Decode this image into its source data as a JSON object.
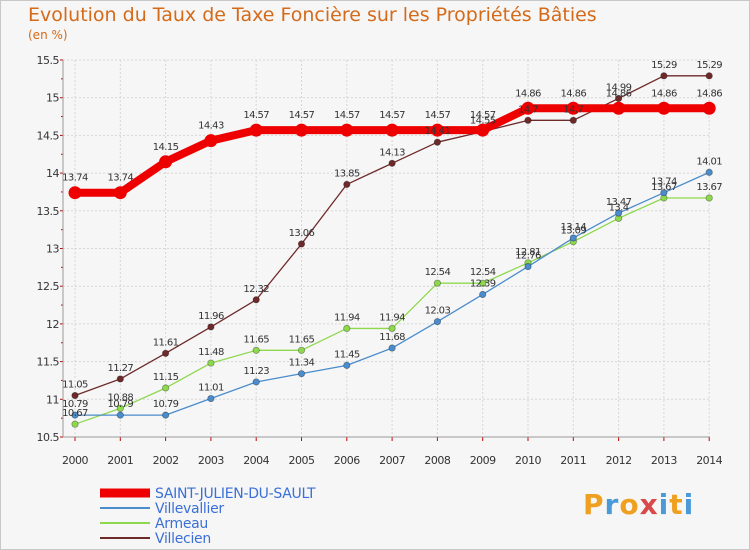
{
  "header": {
    "title": "Evolution du Taux de Taxe Foncière sur les Propriétés Bâties",
    "units": "(en %)"
  },
  "logo": {
    "letters": [
      "P",
      "r",
      "o",
      "x",
      "i",
      "t",
      "i"
    ],
    "colors": [
      "#f0a020",
      "#4a9ad8",
      "#f0a020",
      "#d84a4a",
      "#4a9ad8",
      "#f0a020",
      "#4a9ad8"
    ]
  },
  "chart_data": {
    "type": "line",
    "title": "Evolution du Taux de Taxe Foncière sur les Propriétés Bâties",
    "ylabel": "(en %)",
    "xlabel": "",
    "ylim": [
      10.5,
      15.5
    ],
    "yticks": [
      "10.5",
      "11",
      "11.5",
      "12",
      "12.5",
      "13",
      "13.5",
      "14",
      "14.5",
      "15",
      "15.5"
    ],
    "x": [
      "2000",
      "2001",
      "2002",
      "2003",
      "2004",
      "2005",
      "2006",
      "2007",
      "2008",
      "2009",
      "2010",
      "2011",
      "2012",
      "2013",
      "2014"
    ],
    "legend_position": "bottom-left",
    "series": [
      {
        "name": "SAINT-JULIEN-DU-SAULT",
        "color": "#ee0000",
        "values": [
          13.74,
          13.74,
          14.15,
          14.43,
          14.57,
          14.57,
          14.57,
          14.57,
          14.57,
          14.57,
          14.86,
          14.86,
          14.86,
          14.86,
          14.86
        ],
        "labels": [
          "13.74",
          "13.74",
          "14.15",
          "14.43",
          "14.57",
          "14.57",
          "14.57",
          "14.57",
          "14.57",
          "14.57",
          "14.86",
          "14.86",
          "14.86",
          "14.86",
          "14.86"
        ]
      },
      {
        "name": "Villevallier",
        "color": "#4a8ccc",
        "values": [
          10.79,
          10.79,
          10.79,
          11.01,
          11.23,
          11.34,
          11.45,
          11.68,
          12.03,
          12.39,
          12.76,
          13.14,
          13.47,
          13.74,
          14.01
        ],
        "labels": [
          "10.79",
          "10.79",
          "10.79",
          "11.01",
          "11.23",
          "11.34",
          "11.45",
          "11.68",
          "12.03",
          "12.39",
          "12.76",
          "13.14",
          "13.47",
          "13.74",
          "14.01"
        ]
      },
      {
        "name": "Armeau",
        "color": "#8ed84e",
        "values": [
          10.67,
          10.88,
          11.15,
          11.48,
          11.65,
          11.65,
          11.94,
          11.94,
          12.54,
          12.54,
          12.81,
          13.09,
          13.4,
          13.67,
          13.67
        ],
        "labels": [
          "10.67",
          "10.88",
          "11.15",
          "11.48",
          "11.65",
          "11.65",
          "11.94",
          "11.94",
          "12.54",
          "12.54",
          "12.81",
          "13.09",
          "13.4",
          "13.67",
          "13.67"
        ]
      },
      {
        "name": "Villecien",
        "color": "#6e2a2a",
        "values": [
          11.05,
          11.27,
          11.61,
          11.96,
          12.32,
          13.06,
          13.85,
          14.13,
          14.41,
          14.55,
          14.7,
          14.7,
          14.99,
          15.29,
          15.29
        ],
        "labels": [
          "11.05",
          "11.27",
          "11.61",
          "11.96",
          "12.32",
          "13.06",
          "13.85",
          "14.13",
          "14.41",
          "14.55",
          "14.7",
          "14.7",
          "14.99",
          "15.29",
          "15.29"
        ]
      }
    ]
  }
}
